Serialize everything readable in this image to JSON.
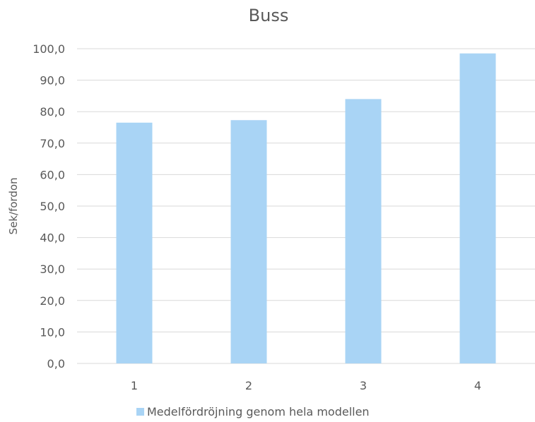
{
  "chart_data": {
    "type": "bar",
    "title": "Buss",
    "xlabel": "",
    "ylabel": "Sek/fordon",
    "categories": [
      "1",
      "2",
      "3",
      "4"
    ],
    "series": [
      {
        "name": "Medelfördröjning genom hela modellen",
        "values": [
          76.5,
          77.3,
          84.0,
          98.5
        ],
        "color": "#a9d4f5"
      }
    ],
    "ylim": [
      0,
      100
    ],
    "yticks": [
      "0,0",
      "10,0",
      "20,0",
      "30,0",
      "40,0",
      "50,0",
      "60,0",
      "70,0",
      "80,0",
      "90,0",
      "100,0"
    ],
    "grid": true,
    "legend": "bottom"
  }
}
